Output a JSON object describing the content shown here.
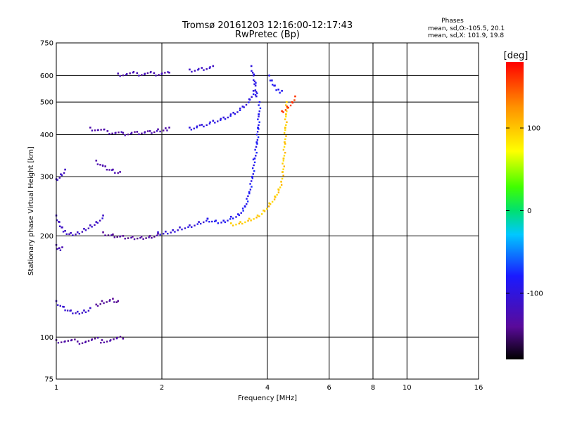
{
  "chart_data": {
    "type": "scatter",
    "title": "Tromsø 20161203 12:16:00-12:17:43",
    "subtitle": "RwPretec (Bp)",
    "xlabel": "Frequency [MHz]",
    "ylabel": "Stationary phase Virtual Height [km]",
    "x_scale": "log",
    "y_scale": "log",
    "xlim": [
      1,
      16
    ],
    "ylim": [
      75,
      750
    ],
    "x_ticks": [
      1,
      2,
      4,
      6,
      8,
      10,
      16
    ],
    "x_tick_labels": [
      "1",
      "2",
      "4",
      "6",
      "8",
      "10",
      "16"
    ],
    "y_ticks": [
      75,
      100,
      200,
      300,
      400,
      500,
      600,
      750
    ],
    "y_tick_labels": [
      "75",
      "100",
      "200",
      "300",
      "400",
      "500",
      "600",
      "750"
    ],
    "grid": true,
    "stats": {
      "title": "Phases",
      "line1": "mean, sd,O:-105.5, 20.1",
      "line2": "mean, sd,X: 101.9, 19.8"
    },
    "colorbar": {
      "label": "[deg]",
      "range": [
        -180,
        180
      ],
      "ticks": [
        100,
        0,
        -100
      ],
      "tick_labels": [
        "100",
        "0",
        "-100"
      ]
    },
    "traces": [
      {
        "name": "",
        "phase": -115,
        "points": [
          [
            1.0,
            230
          ],
          [
            1.02,
            220
          ],
          [
            1.04,
            212
          ],
          [
            1.06,
            207
          ],
          [
            1.1,
            204
          ],
          [
            1.15,
            205
          ],
          [
            1.2,
            210
          ],
          [
            1.25,
            215
          ],
          [
            1.3,
            220
          ],
          [
            1.36,
            230
          ]
        ]
      },
      {
        "name": "",
        "phase": -140,
        "points": [
          [
            1.36,
            205
          ],
          [
            1.45,
            202
          ],
          [
            1.55,
            200
          ],
          [
            1.65,
            199
          ],
          [
            1.75,
            199
          ],
          [
            1.85,
            200
          ],
          [
            1.95,
            203
          ]
        ]
      },
      {
        "name": "",
        "phase": -105,
        "points": [
          [
            1.95,
            205
          ],
          [
            2.05,
            206
          ],
          [
            2.15,
            208
          ],
          [
            2.25,
            212
          ],
          [
            2.4,
            215
          ],
          [
            2.55,
            220
          ],
          [
            2.7,
            225
          ]
        ]
      },
      {
        "name": "",
        "phase": -90,
        "points": [
          [
            2.7,
            225
          ],
          [
            2.85,
            222
          ],
          [
            3.0,
            222
          ],
          [
            3.15,
            228
          ],
          [
            3.3,
            232
          ],
          [
            3.45,
            245
          ],
          [
            3.55,
            270
          ],
          [
            3.62,
            300
          ],
          [
            3.68,
            340
          ],
          [
            3.73,
            380
          ],
          [
            3.76,
            420
          ],
          [
            3.78,
            460
          ],
          [
            3.8,
            500
          ]
        ]
      },
      {
        "name": "",
        "phase": 95,
        "points": [
          [
            3.15,
            218
          ],
          [
            3.35,
            220
          ],
          [
            3.55,
            225
          ],
          [
            3.75,
            230
          ],
          [
            3.9,
            238
          ],
          [
            4.05,
            250
          ],
          [
            4.2,
            262
          ],
          [
            4.3,
            275
          ],
          [
            4.38,
            290
          ],
          [
            4.42,
            310
          ],
          [
            4.45,
            340
          ],
          [
            4.48,
            380
          ],
          [
            4.5,
            420
          ],
          [
            4.52,
            460
          ],
          [
            4.54,
            500
          ]
        ]
      },
      {
        "name": "",
        "phase": 160,
        "points": [
          [
            4.4,
            470
          ],
          [
            4.55,
            485
          ],
          [
            4.7,
            500
          ],
          [
            4.8,
            520
          ]
        ]
      },
      {
        "name": "",
        "phase": -130,
        "points": [
          [
            1.25,
            420
          ],
          [
            1.4,
            410
          ],
          [
            1.55,
            405
          ],
          [
            1.7,
            408
          ],
          [
            1.85,
            410
          ],
          [
            1.95,
            415
          ],
          [
            2.05,
            418
          ],
          [
            2.1,
            420
          ]
        ]
      },
      {
        "name": "",
        "phase": -100,
        "points": [
          [
            2.4,
            420
          ],
          [
            2.6,
            428
          ],
          [
            2.8,
            440
          ],
          [
            3.0,
            450
          ],
          [
            3.2,
            465
          ],
          [
            3.4,
            485
          ],
          [
            3.55,
            510
          ],
          [
            3.65,
            540
          ]
        ]
      },
      {
        "name": "",
        "phase": -125,
        "points": [
          [
            1.5,
            608
          ],
          [
            1.7,
            610
          ],
          [
            1.9,
            610
          ],
          [
            2.1,
            612
          ]
        ]
      },
      {
        "name": "",
        "phase": -115,
        "points": [
          [
            2.4,
            625
          ],
          [
            2.6,
            632
          ],
          [
            2.8,
            640
          ]
        ]
      },
      {
        "name": "",
        "phase": -100,
        "points": [
          [
            3.6,
            640
          ],
          [
            3.65,
            600
          ],
          [
            3.7,
            560
          ],
          [
            3.72,
            520
          ]
        ]
      },
      {
        "name": "",
        "phase": -90,
        "points": [
          [
            4.05,
            600
          ],
          [
            4.12,
            580
          ],
          [
            4.2,
            560
          ],
          [
            4.3,
            545
          ],
          [
            4.4,
            540
          ]
        ]
      },
      {
        "name": "",
        "phase": -110,
        "points": [
          [
            1.0,
            128
          ],
          [
            1.05,
            123
          ],
          [
            1.1,
            120
          ],
          [
            1.15,
            119
          ],
          [
            1.2,
            120
          ],
          [
            1.25,
            122
          ]
        ]
      },
      {
        "name": "",
        "phase": -140,
        "points": [
          [
            1.3,
            125
          ],
          [
            1.35,
            128
          ],
          [
            1.45,
            130
          ],
          [
            1.5,
            128
          ]
        ]
      },
      {
        "name": "",
        "phase": -125,
        "points": [
          [
            1.0,
            188
          ],
          [
            1.02,
            184
          ],
          [
            1.04,
            185
          ]
        ]
      },
      {
        "name": "",
        "phase": -115,
        "points": [
          [
            1.0,
            295
          ],
          [
            1.03,
            305
          ],
          [
            1.06,
            315
          ]
        ]
      },
      {
        "name": "",
        "phase": -130,
        "points": [
          [
            1.3,
            335
          ],
          [
            1.38,
            322
          ],
          [
            1.45,
            315
          ],
          [
            1.52,
            310
          ]
        ]
      },
      {
        "name": "",
        "phase": -135,
        "points": [
          [
            1.0,
            98
          ],
          [
            1.15,
            97
          ],
          [
            1.35,
            98
          ],
          [
            1.55,
            99
          ]
        ]
      }
    ]
  }
}
